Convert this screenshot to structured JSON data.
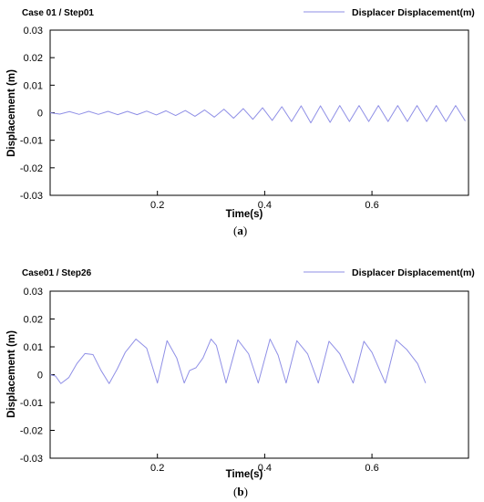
{
  "colors": {
    "line": "#8f8fe6",
    "axis": "#000000",
    "background": "#ffffff"
  },
  "chart_data": [
    {
      "type": "line",
      "title": "Case 01 / Step01",
      "caption_open": "(",
      "caption_letter": "a",
      "caption_close": ")",
      "xlabel": "Time(s)",
      "ylabel": "Displacement (m)",
      "xlim": [
        0,
        0.78
      ],
      "ylim": [
        -0.03,
        0.03
      ],
      "xticks": [
        0.2,
        0.4,
        0.6
      ],
      "xtick_labels": [
        "0.2",
        "0.4",
        "0.6"
      ],
      "yticks": [
        0.03,
        0.02,
        0.01,
        0,
        -0.01,
        -0.02,
        -0.03
      ],
      "ytick_labels": [
        "0.03",
        "0.02",
        "0.01",
        "0",
        "-0.01",
        "-0.02",
        "-0.03"
      ],
      "grid": false,
      "legend_position": "top-right",
      "series": [
        {
          "name": "Displacer Displacement(m)",
          "x": [
            0.0,
            0.018,
            0.036,
            0.054,
            0.072,
            0.09,
            0.108,
            0.126,
            0.144,
            0.162,
            0.18,
            0.198,
            0.216,
            0.234,
            0.252,
            0.27,
            0.288,
            0.306,
            0.324,
            0.342,
            0.36,
            0.378,
            0.396,
            0.414,
            0.432,
            0.45,
            0.468,
            0.486,
            0.504,
            0.522,
            0.54,
            0.558,
            0.576,
            0.594,
            0.612,
            0.63,
            0.648,
            0.666,
            0.684,
            0.702,
            0.72,
            0.738,
            0.756,
            0.774
          ],
          "y": [
            0.0,
            -0.0005,
            0.0004,
            -0.0006,
            0.0005,
            -0.0006,
            0.0005,
            -0.0007,
            0.0005,
            -0.0007,
            0.0006,
            -0.0008,
            0.0007,
            -0.001,
            0.0008,
            -0.0013,
            0.001,
            -0.0016,
            0.0013,
            -0.002,
            0.0015,
            -0.0024,
            0.0018,
            -0.0028,
            0.0022,
            -0.0032,
            0.0025,
            -0.0037,
            0.0025,
            -0.0035,
            0.0026,
            -0.0032,
            0.0026,
            -0.0032,
            0.0026,
            -0.0032,
            0.0026,
            -0.0032,
            0.0026,
            -0.0032,
            0.0026,
            -0.0032,
            0.0026,
            -0.003
          ]
        }
      ]
    },
    {
      "type": "line",
      "title": "Case01 / Step26",
      "caption_open": "(",
      "caption_letter": "b",
      "caption_close": ")",
      "xlabel": "Time(s)",
      "ylabel": "Displacement (m)",
      "xlim": [
        0,
        0.78
      ],
      "ylim": [
        -0.03,
        0.03
      ],
      "xticks": [
        0.2,
        0.4,
        0.6
      ],
      "xtick_labels": [
        "0.2",
        "0.4",
        "0.6"
      ],
      "yticks": [
        0.03,
        0.02,
        0.01,
        0,
        -0.01,
        -0.02,
        -0.03
      ],
      "ytick_labels": [
        "0.03",
        "0.02",
        "0.01",
        "0",
        "-0.01",
        "-0.02",
        "-0.03"
      ],
      "grid": false,
      "legend_position": "top-right",
      "series": [
        {
          "name": "Displacer Displacement(m)",
          "x": [
            0.0,
            0.01,
            0.02,
            0.035,
            0.05,
            0.065,
            0.08,
            0.095,
            0.11,
            0.125,
            0.14,
            0.16,
            0.18,
            0.2,
            0.218,
            0.236,
            0.25,
            0.26,
            0.272,
            0.285,
            0.3,
            0.31,
            0.328,
            0.35,
            0.37,
            0.388,
            0.41,
            0.425,
            0.44,
            0.46,
            0.48,
            0.5,
            0.52,
            0.54,
            0.565,
            0.585,
            0.6,
            0.625,
            0.645,
            0.665,
            0.685,
            0.7
          ],
          "y": [
            0.0,
            -0.0005,
            -0.0032,
            -0.001,
            0.004,
            0.0076,
            0.0072,
            0.0015,
            -0.0032,
            0.002,
            0.008,
            0.0128,
            0.0095,
            -0.003,
            0.0122,
            0.006,
            -0.003,
            0.0015,
            0.0025,
            0.006,
            0.0128,
            0.0105,
            -0.003,
            0.0125,
            0.0075,
            -0.003,
            0.0128,
            0.007,
            -0.003,
            0.0122,
            0.0075,
            -0.003,
            0.012,
            0.0075,
            -0.003,
            0.012,
            0.008,
            -0.003,
            0.0125,
            0.009,
            0.004,
            -0.003
          ]
        }
      ]
    }
  ]
}
